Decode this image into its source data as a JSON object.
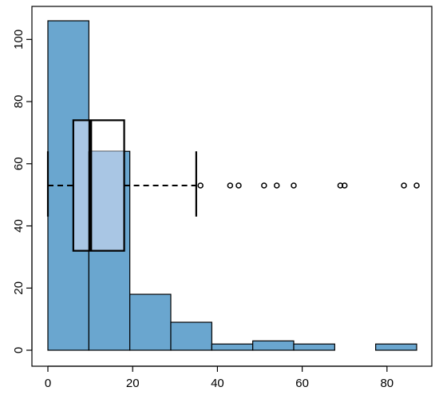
{
  "chart_data": {
    "type": "bar",
    "subtype": "histogram-with-horizontal-boxplot",
    "title": "",
    "xlabel": "",
    "ylabel": "",
    "xlim": [
      0,
      87
    ],
    "ylim": [
      0,
      106
    ],
    "x_ticks": [
      0,
      20,
      40,
      60,
      80
    ],
    "y_ticks": [
      0,
      20,
      40,
      60,
      80,
      100
    ],
    "grid": false,
    "legend": "none",
    "bins": [
      {
        "from": 0,
        "to": 9.67,
        "count": 106
      },
      {
        "from": 9.67,
        "to": 19.33,
        "count": 64
      },
      {
        "from": 19.33,
        "to": 29.0,
        "count": 18
      },
      {
        "from": 29.0,
        "to": 38.67,
        "count": 9
      },
      {
        "from": 38.67,
        "to": 48.33,
        "count": 2
      },
      {
        "from": 48.33,
        "to": 58.0,
        "count": 3
      },
      {
        "from": 58.0,
        "to": 67.67,
        "count": 2
      },
      {
        "from": 67.67,
        "to": 77.33,
        "count": 0
      },
      {
        "from": 77.33,
        "to": 87.0,
        "count": 2
      }
    ],
    "boxplot": {
      "min": 0,
      "q1": 6,
      "median": 10,
      "q3": 18,
      "whisker_high": 35,
      "y_center": 53,
      "box_y_range": [
        32,
        74
      ],
      "whisker_cap_range": [
        43,
        64
      ],
      "outliers": [
        36,
        43,
        45,
        51,
        54,
        58,
        69,
        70,
        84,
        87
      ]
    },
    "colors": {
      "bar_fill": "#6aa6cf",
      "box_overlay_fill": "#a9c6e4",
      "stroke": "#000000"
    }
  }
}
